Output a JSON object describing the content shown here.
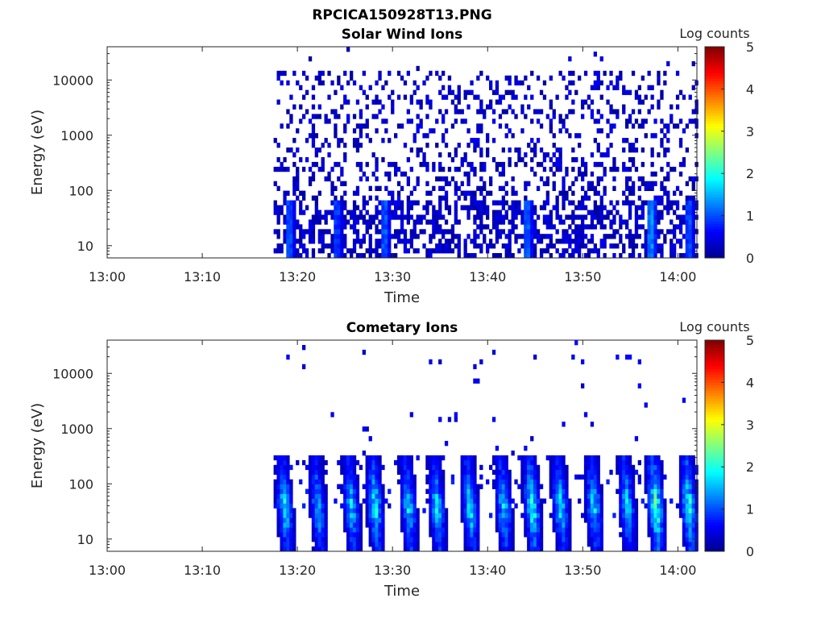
{
  "figure_title": "RPCICA150928T13.PNG",
  "colorbar_colors": [
    "#00008f",
    "#0000ff",
    "#0080ff",
    "#00ffff",
    "#80ff80",
    "#ffff00",
    "#ff8000",
    "#ff0000",
    "#800000"
  ],
  "chart_data": [
    {
      "type": "heatmap",
      "title": "Solar Wind Ions",
      "xlabel": "Time",
      "ylabel": "Energy (eV)",
      "x_range": [
        "13:00",
        "14:02"
      ],
      "x_ticks": [
        "13:00",
        "13:10",
        "13:20",
        "13:30",
        "13:40",
        "13:50",
        "14:00"
      ],
      "y_scale": "log",
      "y_range": [
        6,
        40000
      ],
      "y_ticks": [
        "10",
        "100",
        "1000",
        "10000"
      ],
      "colorbar_label": "Log counts",
      "colorbar_range": [
        0,
        5
      ],
      "colorbar_ticks": [
        "0",
        "1",
        "2",
        "3",
        "4",
        "5"
      ],
      "data_start": "13:17.5",
      "description_of_values": "sparse single counts (log ~0-1) across 10 eV - 20 keV, denser at low energies with occasional ~1.5 spikes",
      "low_energy_bursts": [
        {
          "time": "13:19",
          "level": 1.3
        },
        {
          "time": "13:24",
          "level": 1.2
        },
        {
          "time": "13:29",
          "level": 1.4
        },
        {
          "time": "13:44",
          "level": 1.4
        },
        {
          "time": "13:57",
          "level": 1.7
        },
        {
          "time": "14:01",
          "level": 1.3
        }
      ]
    },
    {
      "type": "heatmap",
      "title": "Cometary Ions",
      "xlabel": "Time",
      "ylabel": "Energy (eV)",
      "x_range": [
        "13:00",
        "14:02"
      ],
      "x_ticks": [
        "13:00",
        "13:10",
        "13:20",
        "13:30",
        "13:40",
        "13:50",
        "14:00"
      ],
      "y_scale": "log",
      "y_range": [
        6,
        40000
      ],
      "y_ticks": [
        "10",
        "100",
        "1000",
        "10000"
      ],
      "colorbar_label": "Log counts",
      "colorbar_range": [
        0,
        5
      ],
      "colorbar_ticks": [
        "0",
        "1",
        "2",
        "3",
        "4",
        "5"
      ],
      "data_start": "13:17.5",
      "bursts": [
        {
          "time": "13:18.5",
          "peak_level": 2.1
        },
        {
          "time": "13:22",
          "peak_level": 1.8
        },
        {
          "time": "13:25.5",
          "peak_level": 2.0
        },
        {
          "time": "13:28",
          "peak_level": 2.2
        },
        {
          "time": "13:31.5",
          "peak_level": 2.0
        },
        {
          "time": "13:34.5",
          "peak_level": 2.0
        },
        {
          "time": "13:38",
          "peak_level": 2.1
        },
        {
          "time": "13:41.5",
          "peak_level": 2.0
        },
        {
          "time": "13:44.5",
          "peak_level": 2.5
        },
        {
          "time": "13:47.5",
          "peak_level": 2.1
        },
        {
          "time": "13:51",
          "peak_level": 2.0
        },
        {
          "time": "13:54.5",
          "peak_level": 2.0
        },
        {
          "time": "13:57.5",
          "peak_level": 2.7
        },
        {
          "time": "14:01",
          "peak_level": 2.4
        }
      ]
    }
  ]
}
